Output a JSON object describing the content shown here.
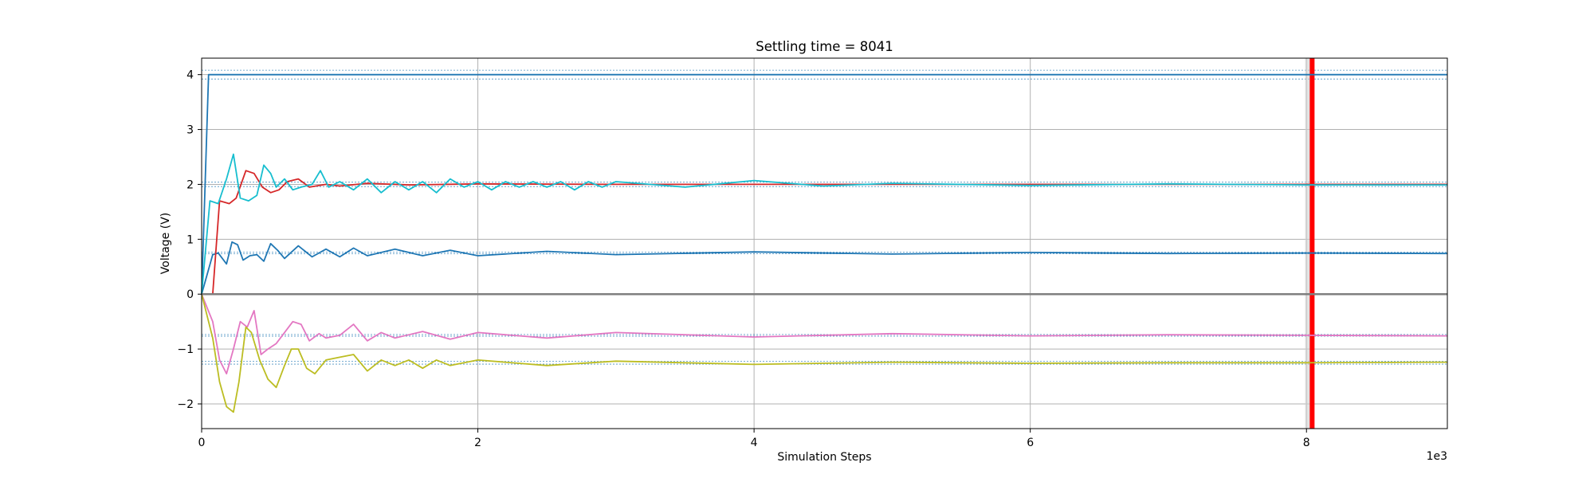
{
  "chart_data": {
    "type": "line",
    "title": "Settling time = 8041",
    "xlabel": "Simulation Steps",
    "ylabel": "Voltage (V)",
    "x_offset_label": "1e3",
    "xlim": [
      0,
      9020
    ],
    "ylim": [
      -2.45,
      4.3
    ],
    "xticks": [
      0,
      2000,
      4000,
      6000,
      8000
    ],
    "xtick_labels": [
      "0",
      "2",
      "4",
      "6",
      "8"
    ],
    "yticks": [
      -2,
      -1,
      0,
      1,
      2,
      3,
      4
    ],
    "ytick_labels": [
      "−2",
      "−1",
      "0",
      "1",
      "2",
      "3",
      "4"
    ],
    "grid": true,
    "settling_time": 8041,
    "settling_color": "#ff0000",
    "settling_band_start": 7990,
    "tolerance_lines": [
      {
        "value": 4.0,
        "band": 0.08
      },
      {
        "value": 2.0,
        "band": 0.04
      },
      {
        "value": 0.75,
        "band": 0.015
      },
      {
        "value": -0.75,
        "band": 0.015
      },
      {
        "value": -1.25,
        "band": 0.025
      }
    ],
    "series": [
      {
        "color": "#1f77b4",
        "points": [
          [
            0,
            0
          ],
          [
            50,
            4.0
          ],
          [
            9020,
            4.0
          ]
        ]
      },
      {
        "color": "#1f77b4",
        "points": [
          [
            0,
            0
          ],
          [
            80,
            0.72
          ],
          [
            120,
            0.75
          ],
          [
            180,
            0.55
          ],
          [
            220,
            0.95
          ],
          [
            260,
            0.9
          ],
          [
            300,
            0.62
          ],
          [
            350,
            0.7
          ],
          [
            400,
            0.72
          ],
          [
            450,
            0.6
          ],
          [
            500,
            0.92
          ],
          [
            550,
            0.8
          ],
          [
            600,
            0.65
          ],
          [
            700,
            0.88
          ],
          [
            800,
            0.68
          ],
          [
            900,
            0.82
          ],
          [
            1000,
            0.68
          ],
          [
            1100,
            0.84
          ],
          [
            1200,
            0.7
          ],
          [
            1400,
            0.82
          ],
          [
            1600,
            0.7
          ],
          [
            1800,
            0.8
          ],
          [
            2000,
            0.7
          ],
          [
            2500,
            0.78
          ],
          [
            3000,
            0.72
          ],
          [
            4000,
            0.77
          ],
          [
            5000,
            0.73
          ],
          [
            6000,
            0.76
          ],
          [
            7000,
            0.74
          ],
          [
            8000,
            0.75
          ],
          [
            9020,
            0.74
          ]
        ]
      },
      {
        "color": "#d62728",
        "points": [
          [
            0,
            0
          ],
          [
            80,
            0
          ],
          [
            130,
            1.7
          ],
          [
            200,
            1.65
          ],
          [
            250,
            1.75
          ],
          [
            320,
            2.25
          ],
          [
            380,
            2.2
          ],
          [
            440,
            1.95
          ],
          [
            500,
            1.85
          ],
          [
            560,
            1.9
          ],
          [
            620,
            2.05
          ],
          [
            700,
            2.1
          ],
          [
            780,
            1.95
          ],
          [
            900,
            2.0
          ],
          [
            1000,
            1.97
          ],
          [
            1200,
            2.02
          ],
          [
            1500,
            1.99
          ],
          [
            2000,
            2.01
          ],
          [
            3000,
            2.0
          ],
          [
            5000,
            2.0
          ],
          [
            9020,
            2.0
          ]
        ]
      },
      {
        "color": "#17becf",
        "points": [
          [
            0,
            0
          ],
          [
            60,
            1.7
          ],
          [
            120,
            1.65
          ],
          [
            180,
            2.1
          ],
          [
            230,
            2.55
          ],
          [
            280,
            1.75
          ],
          [
            340,
            1.7
          ],
          [
            400,
            1.8
          ],
          [
            450,
            2.35
          ],
          [
            500,
            2.2
          ],
          [
            540,
            1.95
          ],
          [
            600,
            2.1
          ],
          [
            660,
            1.9
          ],
          [
            720,
            1.95
          ],
          [
            800,
            2.0
          ],
          [
            860,
            2.25
          ],
          [
            920,
            1.95
          ],
          [
            1000,
            2.05
          ],
          [
            1100,
            1.9
          ],
          [
            1200,
            2.1
          ],
          [
            1300,
            1.85
          ],
          [
            1400,
            2.05
          ],
          [
            1500,
            1.9
          ],
          [
            1600,
            2.05
          ],
          [
            1700,
            1.85
          ],
          [
            1800,
            2.1
          ],
          [
            1900,
            1.95
          ],
          [
            2000,
            2.05
          ],
          [
            2100,
            1.9
          ],
          [
            2200,
            2.05
          ],
          [
            2300,
            1.95
          ],
          [
            2400,
            2.05
          ],
          [
            2500,
            1.95
          ],
          [
            2600,
            2.05
          ],
          [
            2700,
            1.9
          ],
          [
            2800,
            2.05
          ],
          [
            2900,
            1.95
          ],
          [
            3000,
            2.05
          ],
          [
            3500,
            1.95
          ],
          [
            4000,
            2.07
          ],
          [
            4500,
            1.97
          ],
          [
            5000,
            2.02
          ],
          [
            6000,
            1.98
          ],
          [
            7000,
            2.01
          ],
          [
            8000,
            1.99
          ],
          [
            9020,
            1.99
          ]
        ]
      },
      {
        "color": "#e377c2",
        "points": [
          [
            0,
            0
          ],
          [
            80,
            -0.5
          ],
          [
            130,
            -1.2
          ],
          [
            180,
            -1.45
          ],
          [
            230,
            -1.0
          ],
          [
            280,
            -0.5
          ],
          [
            330,
            -0.6
          ],
          [
            380,
            -0.3
          ],
          [
            430,
            -1.1
          ],
          [
            480,
            -1.0
          ],
          [
            540,
            -0.9
          ],
          [
            600,
            -0.7
          ],
          [
            660,
            -0.5
          ],
          [
            720,
            -0.55
          ],
          [
            780,
            -0.85
          ],
          [
            850,
            -0.72
          ],
          [
            900,
            -0.8
          ],
          [
            1000,
            -0.75
          ],
          [
            1100,
            -0.55
          ],
          [
            1200,
            -0.85
          ],
          [
            1300,
            -0.7
          ],
          [
            1400,
            -0.8
          ],
          [
            1600,
            -0.68
          ],
          [
            1800,
            -0.82
          ],
          [
            2000,
            -0.7
          ],
          [
            2500,
            -0.8
          ],
          [
            3000,
            -0.7
          ],
          [
            4000,
            -0.78
          ],
          [
            5000,
            -0.72
          ],
          [
            6000,
            -0.76
          ],
          [
            7000,
            -0.74
          ],
          [
            8000,
            -0.75
          ],
          [
            9020,
            -0.76
          ]
        ]
      },
      {
        "color": "#bcbd22",
        "points": [
          [
            0,
            0
          ],
          [
            80,
            -0.8
          ],
          [
            130,
            -1.6
          ],
          [
            180,
            -2.05
          ],
          [
            230,
            -2.15
          ],
          [
            270,
            -1.6
          ],
          [
            320,
            -0.6
          ],
          [
            360,
            -0.7
          ],
          [
            420,
            -1.2
          ],
          [
            480,
            -1.55
          ],
          [
            540,
            -1.7
          ],
          [
            600,
            -1.3
          ],
          [
            650,
            -1.0
          ],
          [
            700,
            -1.0
          ],
          [
            760,
            -1.35
          ],
          [
            820,
            -1.45
          ],
          [
            900,
            -1.2
          ],
          [
            1000,
            -1.15
          ],
          [
            1100,
            -1.1
          ],
          [
            1200,
            -1.4
          ],
          [
            1300,
            -1.2
          ],
          [
            1400,
            -1.3
          ],
          [
            1500,
            -1.2
          ],
          [
            1600,
            -1.35
          ],
          [
            1700,
            -1.2
          ],
          [
            1800,
            -1.3
          ],
          [
            2000,
            -1.2
          ],
          [
            2500,
            -1.3
          ],
          [
            3000,
            -1.22
          ],
          [
            4000,
            -1.28
          ],
          [
            5000,
            -1.24
          ],
          [
            6000,
            -1.26
          ],
          [
            7000,
            -1.25
          ],
          [
            8000,
            -1.25
          ],
          [
            9020,
            -1.24
          ]
        ]
      },
      {
        "color": "#7f7f7f",
        "points": [
          [
            0,
            0
          ],
          [
            9020,
            0
          ]
        ]
      }
    ]
  }
}
